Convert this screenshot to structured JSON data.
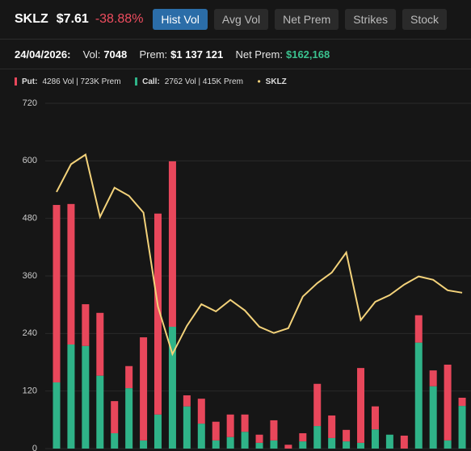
{
  "header": {
    "ticker": "SKLZ",
    "price": "$7.61",
    "change": "-38.88%",
    "tabs": [
      "Hist Vol",
      "Avg Vol",
      "Net Prem",
      "Strikes",
      "Stock"
    ]
  },
  "info": {
    "date": "24/04/2026:",
    "vol_label": "Vol:",
    "vol": "7048",
    "prem_label": "Prem:",
    "prem": "$1 137 121",
    "net_label": "Net Prem:",
    "net": "$162,168"
  },
  "legend": {
    "put_label": "Put:",
    "put_text": "4286 Vol | 723K Prem",
    "call_label": "Call:",
    "call_text": "2762 Vol | 415K Prem"
  },
  "chart_data": {
    "type": "stacked-bar-line",
    "categories": [
      null,
      null,
      null,
      null,
      null,
      null,
      null,
      null,
      null,
      null,
      null,
      null,
      null,
      null,
      null,
      null,
      null,
      null,
      null,
      null,
      null,
      null,
      null,
      null,
      null,
      null,
      null,
      null,
      null
    ],
    "series": [
      {
        "name": "Call",
        "color": "#2fb388",
        "values": [
          138,
          217,
          214,
          152,
          32,
          126,
          17,
          71,
          254,
          88,
          52,
          17,
          24,
          35,
          12,
          17,
          0,
          15,
          47,
          22,
          15,
          12,
          40,
          29,
          0,
          221,
          130,
          17,
          89
        ]
      },
      {
        "name": "Put",
        "color": "#e8475b",
        "values": [
          370,
          293,
          87,
          131,
          67,
          46,
          215,
          419,
          345,
          23,
          52,
          39,
          47,
          36,
          17,
          42,
          8,
          17,
          88,
          47,
          24,
          156,
          48,
          0,
          27,
          57,
          33,
          158,
          17
        ]
      },
      {
        "name": "SKLZ",
        "color": "#f3d27a",
        "type": "line",
        "values": [
          535,
          593,
          613,
          483,
          544,
          527,
          492,
          296,
          197,
          256,
          301,
          286,
          310,
          288,
          254,
          241,
          251,
          317,
          345,
          367,
          409,
          268,
          306,
          320,
          342,
          359,
          352,
          330,
          325
        ]
      }
    ],
    "ylim": [
      0,
      720
    ],
    "yticks": [
      0,
      120,
      240,
      360,
      480,
      600,
      720
    ],
    "grid": true
  }
}
